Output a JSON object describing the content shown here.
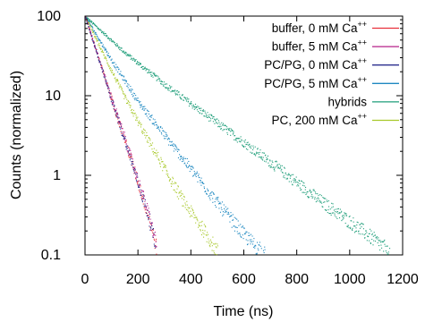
{
  "chart_data": {
    "type": "scatter",
    "title": "",
    "xlabel": "Time (ns)",
    "ylabel": "Counts (normalized)",
    "xlim": [
      0,
      1200
    ],
    "ylim": [
      0.1,
      100
    ],
    "yscale": "log",
    "grid": false,
    "legend_position": "top-right",
    "x_ticks": [
      0,
      200,
      400,
      600,
      800,
      1000,
      1200
    ],
    "x_tick_labels": [
      "0",
      "200",
      "400",
      "600",
      "800",
      "1000",
      "1200"
    ],
    "y_ticks": [
      0.1,
      1,
      10,
      100
    ],
    "y_tick_labels": [
      "0.1",
      "1",
      "10",
      "100"
    ],
    "series": [
      {
        "name": "buffer, 0 mM Ca",
        "name_superscript": "++",
        "color": "#e8303a",
        "points": [
          [
            0,
            100
          ],
          [
            25,
            55
          ],
          [
            50,
            30
          ],
          [
            100,
            9
          ],
          [
            150,
            2.8
          ],
          [
            200,
            0.8
          ],
          [
            240,
            0.3
          ],
          [
            270,
            0.12
          ]
        ]
      },
      {
        "name": "buffer, 5 mM Ca",
        "name_superscript": "++",
        "color": "#b5218a",
        "points": [
          [
            0,
            100
          ],
          [
            25,
            55
          ],
          [
            50,
            30
          ],
          [
            100,
            9.2
          ],
          [
            150,
            2.9
          ],
          [
            200,
            0.85
          ],
          [
            240,
            0.32
          ],
          [
            270,
            0.13
          ]
        ]
      },
      {
        "name": "PC/PG, 0 mM Ca",
        "name_superscript": "++",
        "color": "#2b2f8f",
        "points": [
          [
            0,
            100
          ],
          [
            25,
            54
          ],
          [
            50,
            29
          ],
          [
            100,
            8.8
          ],
          [
            150,
            2.7
          ],
          [
            200,
            0.8
          ],
          [
            240,
            0.3
          ],
          [
            265,
            0.13
          ]
        ]
      },
      {
        "name": "PC/PG, 5 mM Ca",
        "name_superscript": "++",
        "color": "#1e88c0",
        "points": [
          [
            0,
            100
          ],
          [
            100,
            28
          ],
          [
            200,
            8.5
          ],
          [
            300,
            3.2
          ],
          [
            400,
            1.2
          ],
          [
            500,
            0.45
          ],
          [
            600,
            0.18
          ],
          [
            680,
            0.1
          ]
        ]
      },
      {
        "name": "hybrids",
        "name_superscript": "",
        "color": "#1f9e7a",
        "points": [
          [
            0,
            100
          ],
          [
            150,
            35
          ],
          [
            300,
            14
          ],
          [
            450,
            6
          ],
          [
            600,
            2.6
          ],
          [
            750,
            1.1
          ],
          [
            900,
            0.45
          ],
          [
            1050,
            0.2
          ],
          [
            1150,
            0.11
          ]
        ]
      },
      {
        "name": "PC, 200 mM Ca",
        "name_superscript": "++",
        "color": "#a8c82a",
        "points": [
          [
            0,
            100
          ],
          [
            75,
            30
          ],
          [
            150,
            9.5
          ],
          [
            225,
            3.3
          ],
          [
            300,
            1.2
          ],
          [
            375,
            0.45
          ],
          [
            450,
            0.2
          ],
          [
            500,
            0.11
          ]
        ]
      }
    ]
  }
}
